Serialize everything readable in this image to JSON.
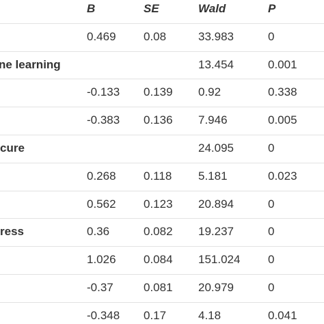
{
  "table": {
    "header": [
      "B",
      "SE",
      "Wald",
      "P"
    ],
    "rows": [
      [
        null,
        "0.469",
        "0.08",
        "33.983",
        "0"
      ],
      [
        "ne learning",
        null,
        null,
        "13.454",
        "0.001"
      ],
      [
        null,
        "-0.133",
        "0.139",
        "0.92",
        "0.338"
      ],
      [
        null,
        "-0.383",
        "0.136",
        "7.946",
        "0.005"
      ],
      [
        "cure",
        null,
        null,
        "24.095",
        "0"
      ],
      [
        null,
        "0.268",
        "0.118",
        "5.181",
        "0.023"
      ],
      [
        null,
        "0.562",
        "0.123",
        "20.894",
        "0"
      ],
      [
        "ress",
        "0.36",
        "0.082",
        "19.237",
        "0"
      ],
      [
        null,
        "1.026",
        "0.084",
        "151.024",
        "0"
      ],
      [
        null,
        "-0.37",
        "0.081",
        "20.979",
        "0"
      ],
      [
        null,
        "-0.348",
        "0.17",
        "4.18",
        "0.041"
      ]
    ]
  }
}
